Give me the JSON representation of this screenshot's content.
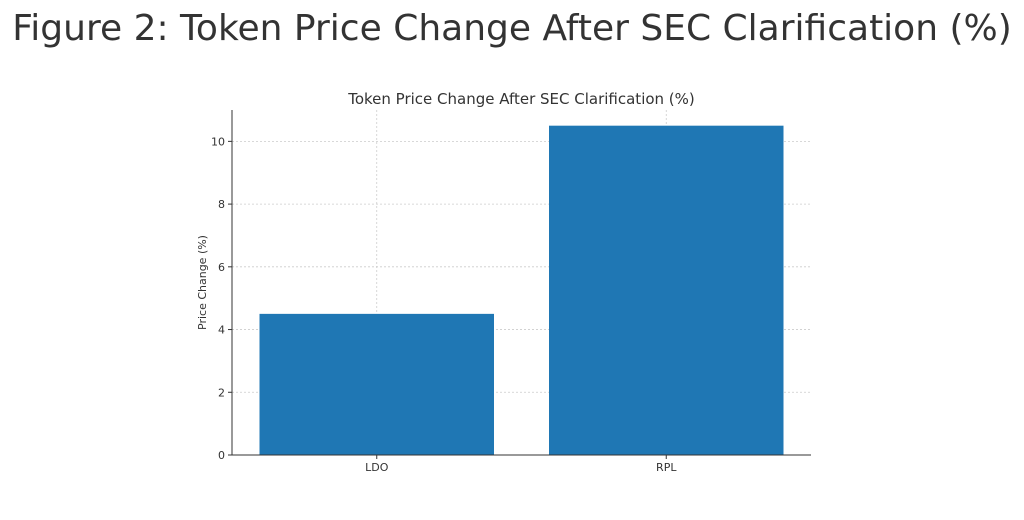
{
  "figure_title": "Figure 2: Token Price Change After SEC Clarification (%)",
  "chart_data": {
    "type": "bar",
    "title": "Token Price Change After SEC Clarification (%)",
    "xlabel": "",
    "ylabel": "Price Change (%)",
    "categories": [
      "LDO",
      "RPL"
    ],
    "values": [
      4.5,
      10.5
    ],
    "ylim": [
      0,
      11
    ],
    "yticks": [
      "0",
      "2",
      "4",
      "6",
      "8",
      "10"
    ],
    "grid": true,
    "bar_color": "#1f77b4",
    "grid_color": "#cccccc",
    "axis_color": "#333333"
  }
}
